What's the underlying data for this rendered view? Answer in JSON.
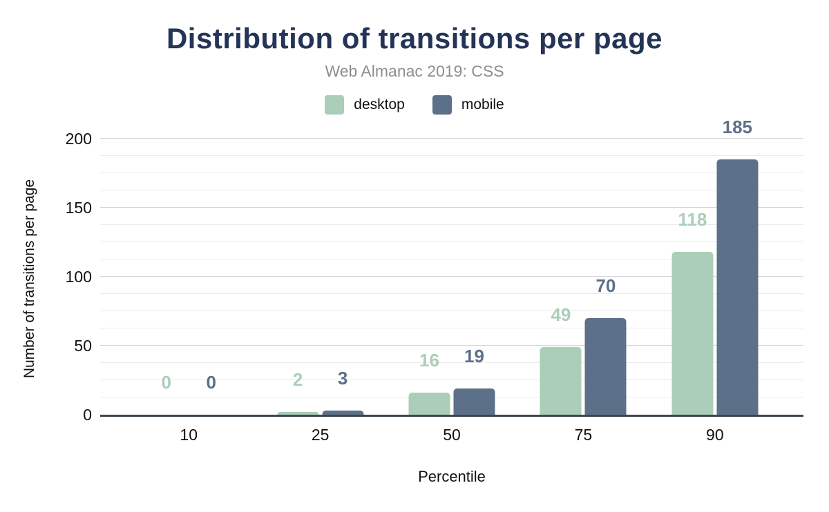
{
  "chart_data": {
    "type": "bar",
    "title": "Distribution of transitions per page",
    "subtitle": "Web Almanac 2019: CSS",
    "xlabel": "Percentile",
    "ylabel": "Number of transitions per page",
    "categories": [
      "10",
      "25",
      "50",
      "75",
      "90"
    ],
    "series": [
      {
        "name": "desktop",
        "color": "#abceb8",
        "values": [
          0,
          2,
          16,
          49,
          118
        ]
      },
      {
        "name": "mobile",
        "color": "#5d7089",
        "values": [
          0,
          3,
          19,
          70,
          185
        ]
      }
    ],
    "y_axis": {
      "min": 0,
      "max": 200,
      "major_step": 50,
      "minor_step": 12.5,
      "ticks": [
        "0",
        "50",
        "100",
        "150",
        "200"
      ]
    },
    "grid": true,
    "legend_position": "top",
    "data_labels": true
  },
  "colors": {
    "title": "#233457",
    "subtitle": "#8e8e8e",
    "desktop": "#abceb8",
    "mobile": "#5d7089",
    "axis_line": "#3d454d",
    "major_grid": "#d4d4d4",
    "minor_grid": "#ebebeb",
    "tick_text": "#111111"
  }
}
